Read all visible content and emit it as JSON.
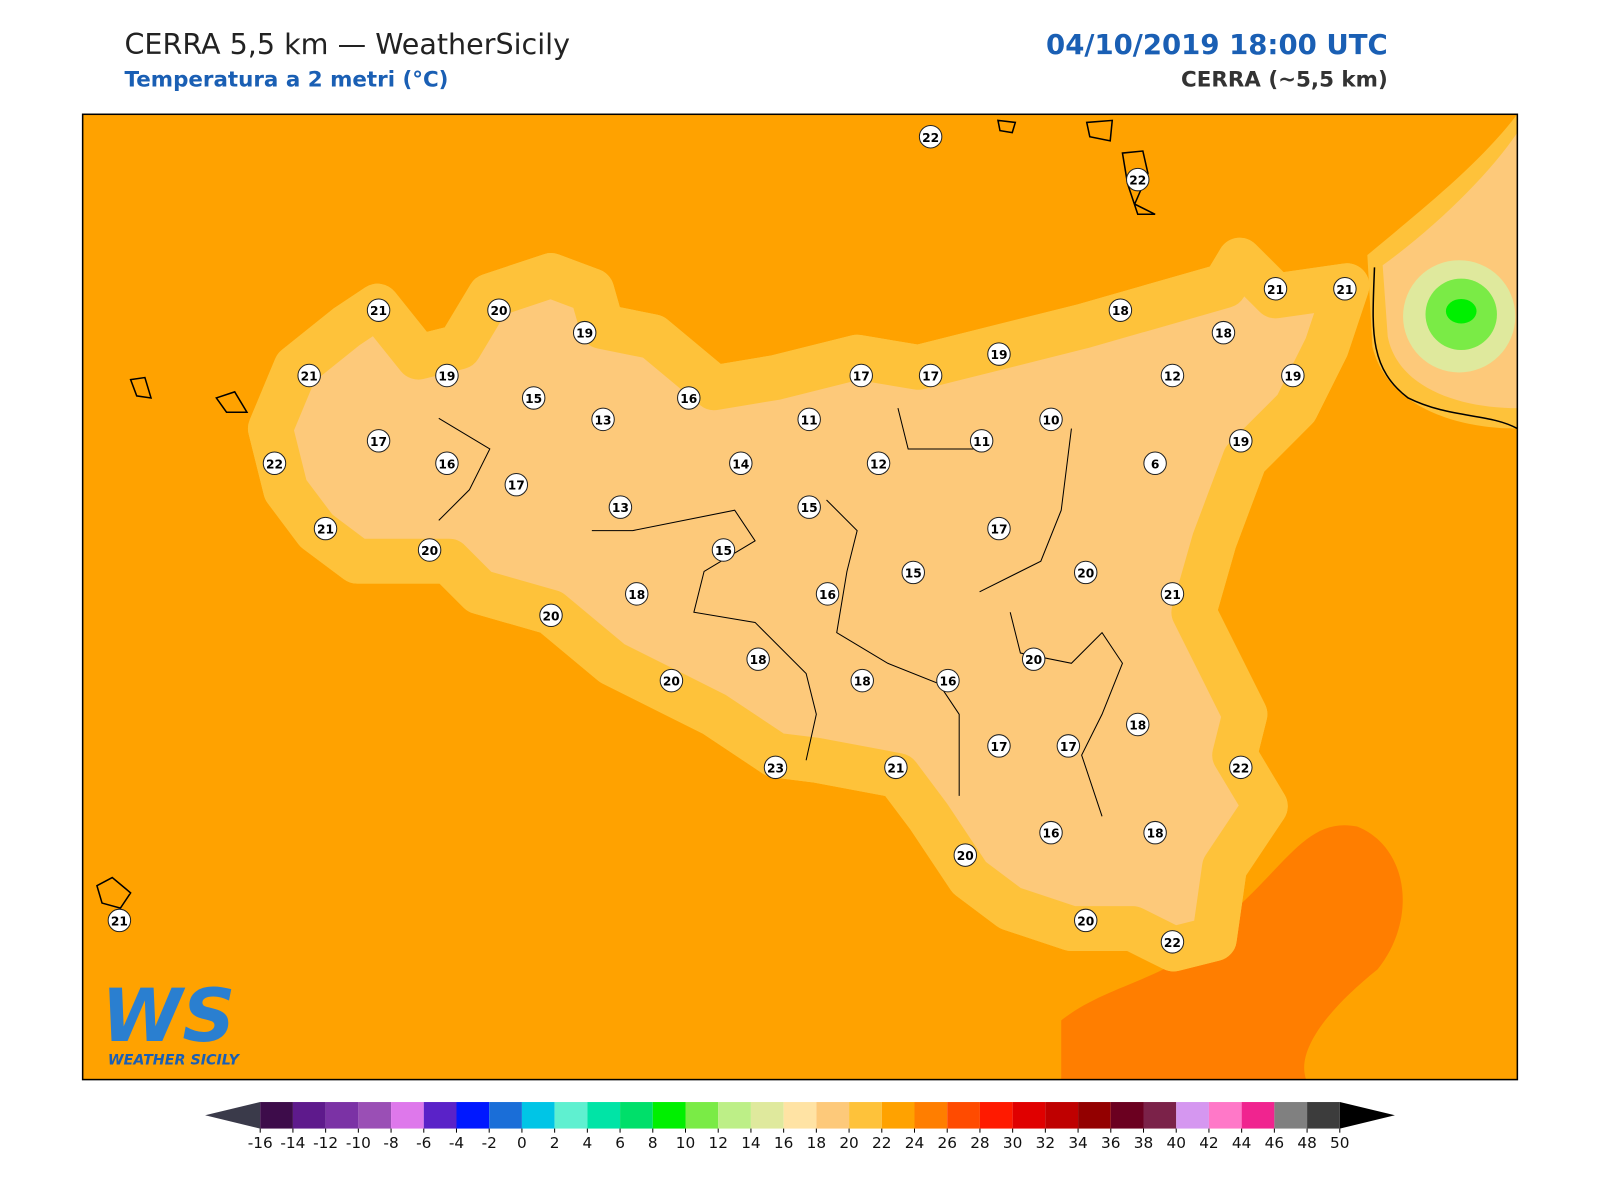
{
  "header": {
    "title": "CERRA 5,5 km — WeatherSicily",
    "subtitle": "Temperatura a 2 metri (°C)",
    "datetime": "04/10/2019 18:00 UTC",
    "model": "CERRA (~5,5 km)"
  },
  "stations": [
    22,
    22,
    21,
    20,
    19,
    18,
    21,
    21,
    18,
    21,
    19,
    15,
    16,
    17,
    17,
    19,
    12,
    19,
    13,
    11,
    10,
    11,
    19,
    17,
    22,
    16,
    14,
    12,
    6,
    17,
    13,
    15,
    21,
    17,
    20,
    15,
    20,
    15,
    16,
    18,
    21,
    20,
    20,
    18,
    20,
    18,
    16,
    18,
    17,
    17,
    23,
    21,
    22,
    16,
    18,
    20,
    20,
    22,
    21
  ],
  "colorbar": {
    "ticks": [
      -16,
      -14,
      -12,
      -10,
      -8,
      -6,
      -4,
      -2,
      0,
      2,
      4,
      6,
      8,
      10,
      12,
      14,
      16,
      18,
      20,
      22,
      24,
      26,
      28,
      30,
      32,
      34,
      36,
      38,
      40,
      42,
      44,
      46,
      48,
      50
    ],
    "colors": [
      "#3d0c4a",
      "#5e1a8c",
      "#7b32a5",
      "#9a4fb5",
      "#de78eb",
      "#5a22c8",
      "#0018ff",
      "#1a6ed8",
      "#00c5e6",
      "#5ff0d0",
      "#00e4a6",
      "#00df6a",
      "#00f000",
      "#7aeb46",
      "#bdef87",
      "#dfe99d",
      "#ffe3a4",
      "#fdc97a",
      "#fec23a",
      "#ffa200",
      "#ff7e00",
      "#ff4b00",
      "#ff1a00",
      "#e00000",
      "#bf0000",
      "#930000",
      "#6b0020",
      "#7b2249",
      "#d597f0",
      "#ff78c8",
      "#f0248f",
      "#808080",
      "#3c3c3c"
    ],
    "under_color": "#3a3a4a",
    "over_color": "#000000"
  },
  "logo": {
    "mark": "WS",
    "name": "WEATHER SICILY"
  }
}
